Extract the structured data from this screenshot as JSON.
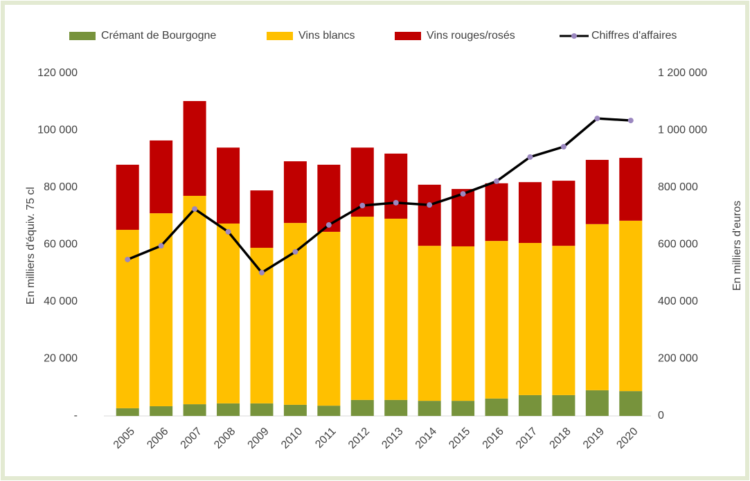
{
  "chart_data": {
    "type": "bar",
    "stacked": true,
    "categories": [
      "2005",
      "2006",
      "2007",
      "2008",
      "2009",
      "2010",
      "2011",
      "2012",
      "2013",
      "2014",
      "2015",
      "2016",
      "2017",
      "2018",
      "2019",
      "2020"
    ],
    "series": [
      {
        "name": "Crémant de Bourgogne",
        "color": "#77933c",
        "values": [
          2700,
          3400,
          4100,
          4400,
          4400,
          3900,
          3600,
          5600,
          5600,
          5300,
          5300,
          6100,
          7300,
          7300,
          9000,
          8700
        ]
      },
      {
        "name": "Vins blancs",
        "color": "#ffc000",
        "values": [
          62500,
          67600,
          73000,
          63000,
          54500,
          63700,
          60900,
          64200,
          63500,
          54300,
          54100,
          55200,
          53300,
          52300,
          58200,
          59700
        ]
      },
      {
        "name": "Vins rouges/rosés",
        "color": "#c00000",
        "values": [
          22800,
          25500,
          33200,
          26600,
          20100,
          21600,
          23500,
          24200,
          22800,
          21400,
          20100,
          20200,
          21300,
          22800,
          22500,
          22000
        ]
      },
      {
        "name": "Chiffres d'affaires",
        "type": "line",
        "axis": "y2",
        "color": "#000000",
        "marker_color": "#9b87c0",
        "values": [
          548000,
          596000,
          725000,
          645000,
          502000,
          575000,
          669000,
          737000,
          747000,
          739000,
          778000,
          822000,
          907000,
          943000,
          1042000,
          1035000
        ]
      }
    ],
    "y_label": "En milliers d'équiv. 75 cl",
    "y2_label": "En milliers d'euros",
    "ylim": [
      0,
      120000
    ],
    "yticks": [
      {
        "value": 0,
        "label": "-"
      },
      {
        "value": 20000,
        "label": "20 000"
      },
      {
        "value": 40000,
        "label": "40 000"
      },
      {
        "value": 60000,
        "label": "60 000"
      },
      {
        "value": 80000,
        "label": "80 000"
      },
      {
        "value": 100000,
        "label": "100 000"
      },
      {
        "value": 120000,
        "label": "120 000"
      }
    ],
    "y2lim": [
      0,
      1200000
    ],
    "y2ticks": [
      0,
      {
        "value": 200000,
        "label": "200 000"
      },
      {
        "value": 400000,
        "label": "400 000"
      },
      {
        "value": 600000,
        "label": "600 000"
      },
      {
        "value": 800000,
        "label": "800 000"
      },
      {
        "value": 1000000,
        "label": "1 000 000"
      },
      {
        "value": 1200000,
        "label": "1 200 000"
      }
    ],
    "legend": "top",
    "grid": false
  }
}
